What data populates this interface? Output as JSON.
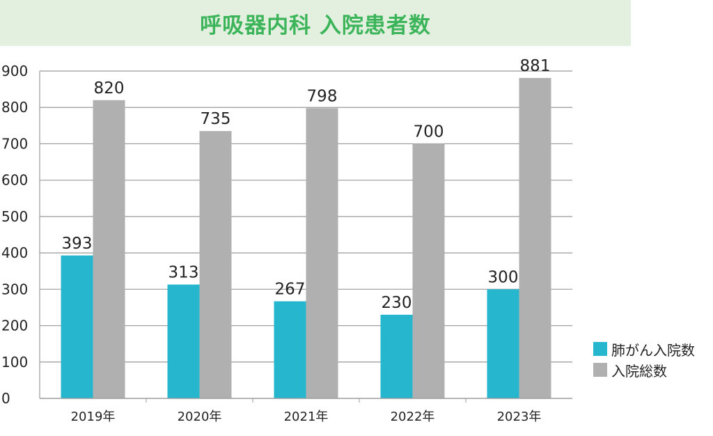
{
  "chart_data": {
    "type": "bar",
    "title": "呼吸器内科 入院患者数",
    "categories": [
      "2019年",
      "2020年",
      "2021年",
      "2022年",
      "2023年"
    ],
    "series": [
      {
        "name": "肺がん入院数",
        "values": [
          393,
          313,
          267,
          230,
          300
        ],
        "color": "#26b7cf"
      },
      {
        "name": "入院総数",
        "values": [
          820,
          735,
          798,
          700,
          881
        ],
        "color": "#b0b0b0"
      }
    ],
    "yticks": [
      0,
      100,
      200,
      300,
      400,
      500,
      600,
      700,
      800,
      900
    ],
    "ylim": [
      0,
      900
    ],
    "grid": true,
    "legend_position": "right-bottom"
  }
}
